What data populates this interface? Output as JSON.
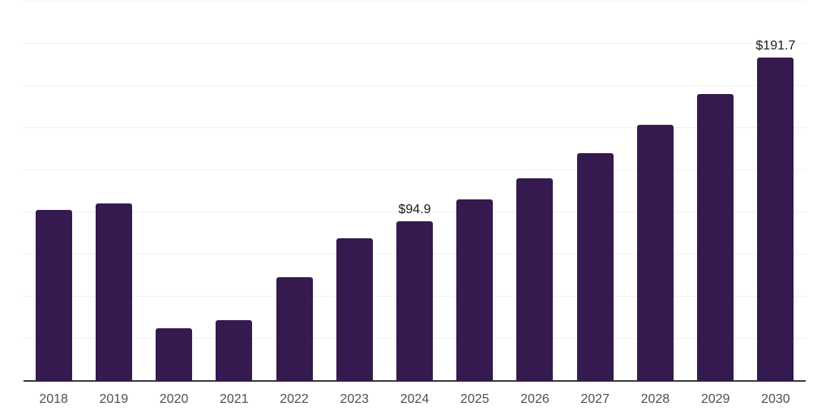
{
  "chart_data": {
    "type": "bar",
    "title": "",
    "xlabel": "",
    "ylabel": "",
    "categories": [
      "2018",
      "2019",
      "2020",
      "2021",
      "2022",
      "2023",
      "2024",
      "2025",
      "2026",
      "2027",
      "2028",
      "2029",
      "2030"
    ],
    "values": [
      101.4,
      105.3,
      31.2,
      36.1,
      61.5,
      84.6,
      94.9,
      107.8,
      120.2,
      135.1,
      151.9,
      170.2,
      191.7
    ],
    "annotations": [
      {
        "category": "2024",
        "label": "$94.9"
      },
      {
        "category": "2030",
        "label": "$191.7"
      }
    ],
    "ylim": [
      0,
      225
    ],
    "grid_interval": 25,
    "grid": true,
    "legend": false,
    "y_tick_labels_visible": false,
    "bar_color": "#341a4e",
    "grid_color": "#f1f1f1",
    "axis_color": "#3b3b3b",
    "tick_label_color": "#4f4f4f",
    "value_label_color": "#1a1a1a"
  }
}
